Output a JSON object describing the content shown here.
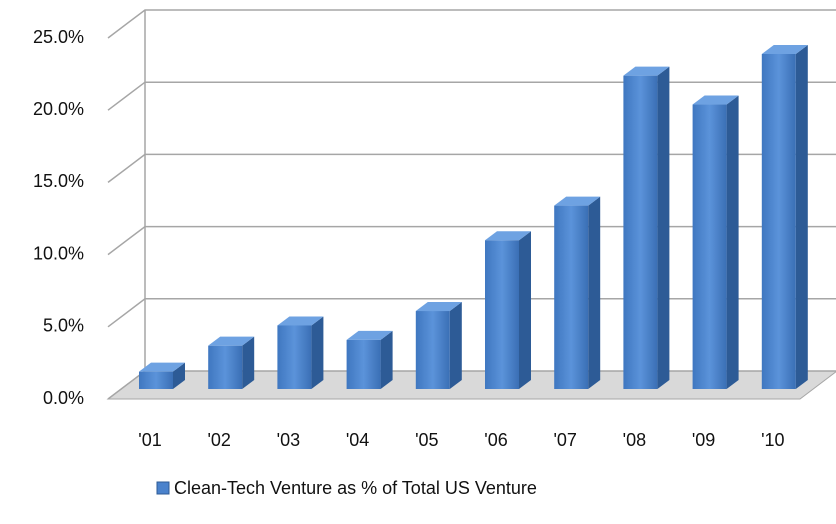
{
  "chart_data": {
    "type": "bar3d",
    "categories": [
      "'01",
      "'02",
      "'03",
      "'04",
      "'05",
      "'06",
      "'07",
      "'08",
      "'09",
      "'10"
    ],
    "series": [
      {
        "name": "Clean-Tech Venture as % of Total US Venture",
        "color": "#4a82cc",
        "values": [
          1.2,
          3.0,
          4.4,
          3.4,
          5.4,
          10.3,
          12.7,
          21.7,
          19.7,
          23.2
        ]
      }
    ],
    "ylim": [
      0,
      25
    ],
    "yticks": [
      {
        "value": 0,
        "label": "0.0%"
      },
      {
        "value": 5,
        "label": "5.0%"
      },
      {
        "value": 10,
        "label": "10.0%"
      },
      {
        "value": 15,
        "label": "15.0%"
      },
      {
        "value": 20,
        "label": "20.0%"
      },
      {
        "value": 25,
        "label": "25.0%"
      }
    ],
    "grid": true,
    "legend": "bottom"
  }
}
